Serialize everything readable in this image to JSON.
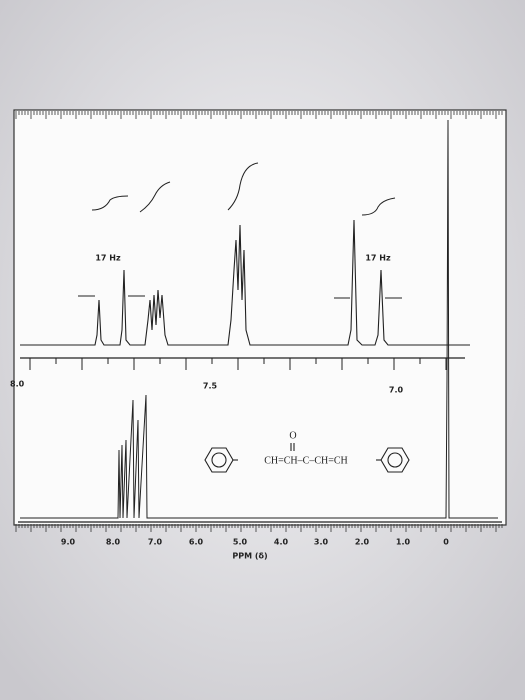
{
  "inset": {
    "coupling_left": "17 Hz",
    "coupling_right": "17 Hz",
    "axis_labels": [
      "8.0",
      "7.5",
      "7.0"
    ]
  },
  "main": {
    "axis_labels": [
      "9.0",
      "8.0",
      "7.0",
      "6.0",
      "5.0",
      "4.0",
      "3.0",
      "2.0",
      "1.0",
      "0"
    ],
    "axis_title": "PPM (δ)"
  },
  "structure": {
    "oxygen": "O",
    "chain": "CH=CH–C–CH=CH"
  }
}
